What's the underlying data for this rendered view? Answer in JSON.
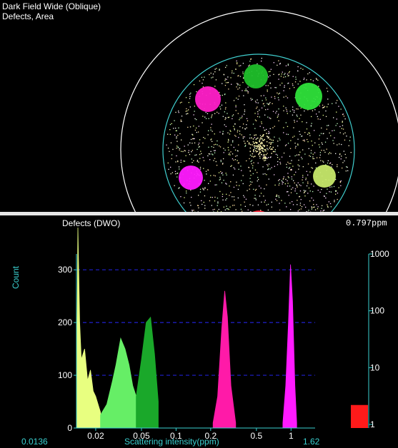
{
  "wafer_view": {
    "title_line1": "Dark Field Wide (Oblique)",
    "title_line2": "Defects, Area",
    "spots": [
      {
        "name": "spot-green-top",
        "color": "#1fbf2a"
      },
      {
        "name": "spot-green-right",
        "color": "#2ee03a"
      },
      {
        "name": "spot-yellow-green",
        "color": "#c6e86a"
      },
      {
        "name": "spot-red",
        "color": "#ff1a2e"
      },
      {
        "name": "spot-magenta-left",
        "color": "#ff1aff"
      },
      {
        "name": "spot-magenta-top",
        "color": "#ff1fc8"
      }
    ],
    "boundary_color": "#40d0d0",
    "outer_ring_color": "#ffffff"
  },
  "histogram": {
    "title": "Defects (DWO)",
    "value_readout": "0.797ppm",
    "ylabel": "Count",
    "xlabel": "Scattering intensity(ppm)",
    "x_min_label": "0.0136",
    "x_max_label": "1.62",
    "y_ticks": [
      "300",
      "200",
      "100",
      "0"
    ],
    "x_ticks": [
      "0.02",
      "0.05",
      "0.1",
      "0.2",
      "0.5",
      "1"
    ],
    "right_scale_ticks": [
      "1000",
      "100",
      "10",
      "1"
    ],
    "gridline_color": "#2020d0",
    "axis_color": "#3ad0d0"
  },
  "chart_data": {
    "type": "area",
    "title": "Defects (DWO)",
    "xlabel": "Scattering intensity(ppm)",
    "ylabel": "Count",
    "x_scale": "log",
    "xlim": [
      0.0136,
      1.62
    ],
    "ylim": [
      0,
      330
    ],
    "grid": true,
    "series": [
      {
        "color": "#e8ff80",
        "x": [
          0.0136,
          0.014,
          0.0145,
          0.015,
          0.016,
          0.017,
          0.018,
          0.019,
          0.02,
          0.022
        ],
        "values": [
          40,
          380,
          200,
          130,
          150,
          90,
          110,
          70,
          60,
          30
        ]
      },
      {
        "color": "#66ee66",
        "x": [
          0.022,
          0.025,
          0.028,
          0.03,
          0.033,
          0.036,
          0.039,
          0.042,
          0.045
        ],
        "values": [
          25,
          45,
          90,
          120,
          170,
          150,
          120,
          80,
          60
        ]
      },
      {
        "color": "#1aa82a",
        "x": [
          0.045,
          0.05,
          0.055,
          0.06,
          0.065,
          0.07
        ],
        "values": [
          60,
          130,
          200,
          210,
          140,
          50
        ]
      },
      {
        "color": "#ff1aa8",
        "x": [
          0.21,
          0.23,
          0.25,
          0.265,
          0.28,
          0.3,
          0.33
        ],
        "values": [
          10,
          60,
          190,
          260,
          210,
          80,
          10
        ]
      },
      {
        "color": "#ff1aff",
        "x": [
          0.85,
          0.9,
          0.95,
          0.99,
          1.03,
          1.08,
          1.12
        ],
        "values": [
          10,
          80,
          200,
          310,
          240,
          80,
          10
        ]
      }
    ]
  }
}
